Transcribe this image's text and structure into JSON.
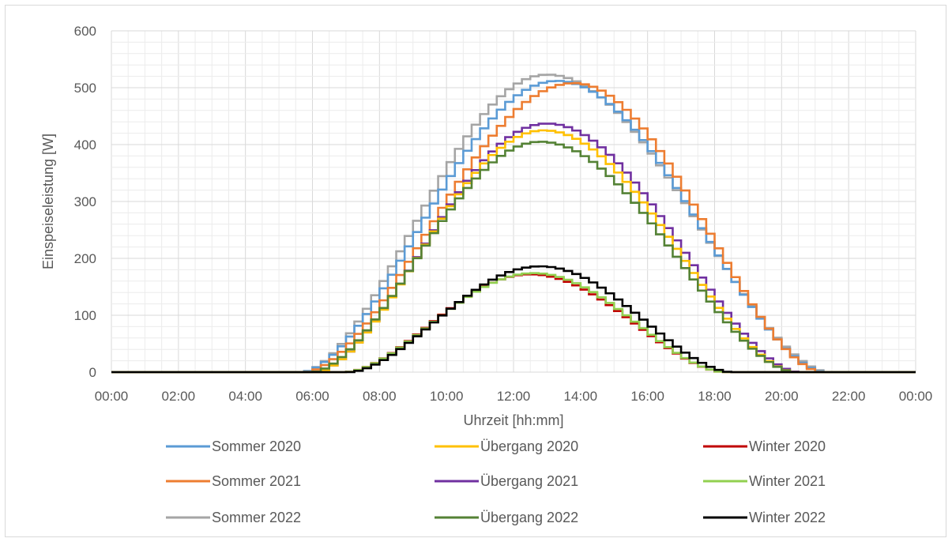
{
  "chart_data": {
    "type": "line",
    "step": true,
    "xlabel": "Uhrzeit [hh:mm]",
    "ylabel": "Einspeiseleistung [W]",
    "xlim": [
      0,
      24
    ],
    "ylim": [
      0,
      600
    ],
    "y_ticks": [
      "0",
      "100",
      "200",
      "300",
      "400",
      "500",
      "600"
    ],
    "x_ticks": [
      "00:00",
      "02:00",
      "04:00",
      "06:00",
      "08:00",
      "10:00",
      "12:00",
      "14:00",
      "16:00",
      "18:00",
      "20:00",
      "22:00",
      "00:00"
    ],
    "grid": true,
    "legend_position": "bottom",
    "series": [
      {
        "name": "Sommer 2020",
        "color": "#5b9bd5",
        "peak_time": 13.3,
        "peak_value": 512,
        "start": 5.7,
        "end": 21.3
      },
      {
        "name": "Übergang 2020",
        "color": "#ffc000",
        "peak_time": 12.9,
        "peak_value": 425,
        "start": 6.1,
        "end": 20.4
      },
      {
        "name": "Winter 2020",
        "color": "#c00000",
        "peak_time": 12.5,
        "peak_value": 172,
        "start": 7.0,
        "end": 18.3
      },
      {
        "name": "Sommer 2021",
        "color": "#ed7d31",
        "peak_time": 13.8,
        "peak_value": 508,
        "start": 5.8,
        "end": 21.2
      },
      {
        "name": "Übergang 2021",
        "color": "#7030a0",
        "peak_time": 13.0,
        "peak_value": 437,
        "start": 6.1,
        "end": 20.5
      },
      {
        "name": "Winter 2021",
        "color": "#92d050",
        "peak_time": 12.6,
        "peak_value": 174,
        "start": 7.0,
        "end": 18.3
      },
      {
        "name": "Sommer 2022",
        "color": "#a5a5a5",
        "peak_time": 13.0,
        "peak_value": 523,
        "start": 5.7,
        "end": 21.4
      },
      {
        "name": "Übergang 2022",
        "color": "#548235",
        "peak_time": 12.8,
        "peak_value": 405,
        "start": 6.0,
        "end": 20.4
      },
      {
        "name": "Winter 2022",
        "color": "#000000",
        "peak_time": 12.8,
        "peak_value": 186,
        "start": 7.1,
        "end": 18.5
      }
    ]
  }
}
